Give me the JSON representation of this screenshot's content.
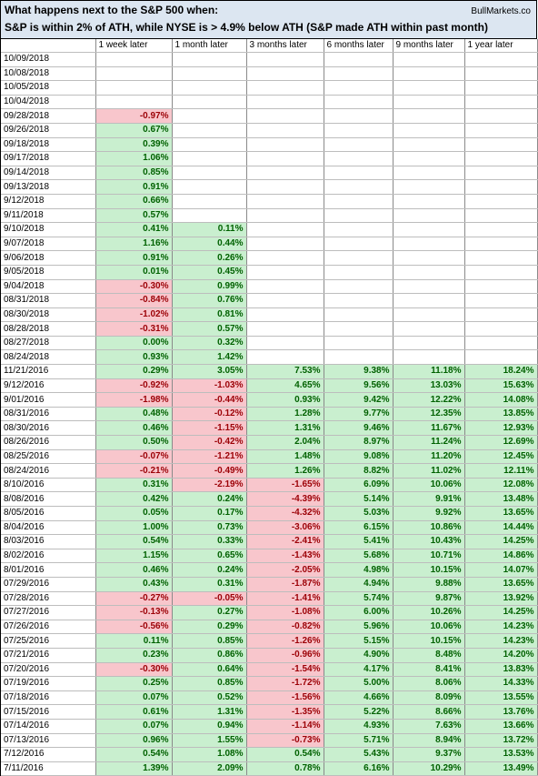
{
  "chart_data": {
    "type": "table",
    "title": "What happens next to the S&P 500 when:",
    "subtitle": "S&P is within 2% of ATH, while NYSE is > 4.9% below ATH (S&P made ATH within past month)",
    "source": "BullMarkets.co",
    "columns": [
      "",
      "1 week later",
      "1 month later",
      "3 months later",
      "6 months later",
      "9 months later",
      "1 year later"
    ],
    "rows": [
      [
        "10/09/2018",
        "",
        "",
        "",
        "",
        "",
        ""
      ],
      [
        "10/08/2018",
        "",
        "",
        "",
        "",
        "",
        ""
      ],
      [
        "10/05/2018",
        "",
        "",
        "",
        "",
        "",
        ""
      ],
      [
        "10/04/2018",
        "",
        "",
        "",
        "",
        "",
        ""
      ],
      [
        "09/28/2018",
        "-0.97%",
        "",
        "",
        "",
        "",
        ""
      ],
      [
        "09/26/2018",
        "0.67%",
        "",
        "",
        "",
        "",
        ""
      ],
      [
        "09/18/2018",
        "0.39%",
        "",
        "",
        "",
        "",
        ""
      ],
      [
        "09/17/2018",
        "1.06%",
        "",
        "",
        "",
        "",
        ""
      ],
      [
        "09/14/2018",
        "0.85%",
        "",
        "",
        "",
        "",
        ""
      ],
      [
        "09/13/2018",
        "0.91%",
        "",
        "",
        "",
        "",
        ""
      ],
      [
        "9/12/2018",
        "0.66%",
        "",
        "",
        "",
        "",
        ""
      ],
      [
        "9/11/2018",
        "0.57%",
        "",
        "",
        "",
        "",
        ""
      ],
      [
        "9/10/2018",
        "0.41%",
        "0.11%",
        "",
        "",
        "",
        ""
      ],
      [
        "9/07/2018",
        "1.16%",
        "0.44%",
        "",
        "",
        "",
        ""
      ],
      [
        "9/06/2018",
        "0.91%",
        "0.26%",
        "",
        "",
        "",
        ""
      ],
      [
        "9/05/2018",
        "0.01%",
        "0.45%",
        "",
        "",
        "",
        ""
      ],
      [
        "9/04/2018",
        "-0.30%",
        "0.99%",
        "",
        "",
        "",
        ""
      ],
      [
        "08/31/2018",
        "-0.84%",
        "0.76%",
        "",
        "",
        "",
        ""
      ],
      [
        "08/30/2018",
        "-1.02%",
        "0.81%",
        "",
        "",
        "",
        ""
      ],
      [
        "08/28/2018",
        "-0.31%",
        "0.57%",
        "",
        "",
        "",
        ""
      ],
      [
        "08/27/2018",
        "0.00%",
        "0.32%",
        "",
        "",
        "",
        ""
      ],
      [
        "08/24/2018",
        "0.93%",
        "1.42%",
        "",
        "",
        "",
        ""
      ],
      [
        "11/21/2016",
        "0.29%",
        "3.05%",
        "7.53%",
        "9.38%",
        "11.18%",
        "18.24%"
      ],
      [
        "9/12/2016",
        "-0.92%",
        "-1.03%",
        "4.65%",
        "9.56%",
        "13.03%",
        "15.63%"
      ],
      [
        "9/01/2016",
        "-1.98%",
        "-0.44%",
        "0.93%",
        "9.42%",
        "12.22%",
        "14.08%"
      ],
      [
        "08/31/2016",
        "0.48%",
        "-0.12%",
        "1.28%",
        "9.77%",
        "12.35%",
        "13.85%"
      ],
      [
        "08/30/2016",
        "0.46%",
        "-1.15%",
        "1.31%",
        "9.46%",
        "11.67%",
        "12.93%"
      ],
      [
        "08/26/2016",
        "0.50%",
        "-0.42%",
        "2.04%",
        "8.97%",
        "11.24%",
        "12.69%"
      ],
      [
        "08/25/2016",
        "-0.07%",
        "-1.21%",
        "1.48%",
        "9.08%",
        "11.20%",
        "12.45%"
      ],
      [
        "08/24/2016",
        "-0.21%",
        "-0.49%",
        "1.26%",
        "8.82%",
        "11.02%",
        "12.11%"
      ],
      [
        "8/10/2016",
        "0.31%",
        "-2.19%",
        "-1.65%",
        "6.09%",
        "10.06%",
        "12.08%"
      ],
      [
        "8/08/2016",
        "0.42%",
        "0.24%",
        "-4.39%",
        "5.14%",
        "9.91%",
        "13.48%"
      ],
      [
        "8/05/2016",
        "0.05%",
        "0.17%",
        "-4.32%",
        "5.03%",
        "9.92%",
        "13.65%"
      ],
      [
        "8/04/2016",
        "1.00%",
        "0.73%",
        "-3.06%",
        "6.15%",
        "10.86%",
        "14.44%"
      ],
      [
        "8/03/2016",
        "0.54%",
        "0.33%",
        "-2.41%",
        "5.41%",
        "10.43%",
        "14.25%"
      ],
      [
        "8/02/2016",
        "1.15%",
        "0.65%",
        "-1.43%",
        "5.68%",
        "10.71%",
        "14.86%"
      ],
      [
        "8/01/2016",
        "0.46%",
        "0.24%",
        "-2.05%",
        "4.98%",
        "10.15%",
        "14.07%"
      ],
      [
        "07/29/2016",
        "0.43%",
        "0.31%",
        "-1.87%",
        "4.94%",
        "9.88%",
        "13.65%"
      ],
      [
        "07/28/2016",
        "-0.27%",
        "-0.05%",
        "-1.41%",
        "5.74%",
        "9.87%",
        "13.92%"
      ],
      [
        "07/27/2016",
        "-0.13%",
        "0.27%",
        "-1.08%",
        "6.00%",
        "10.26%",
        "14.25%"
      ],
      [
        "07/26/2016",
        "-0.56%",
        "0.29%",
        "-0.82%",
        "5.96%",
        "10.06%",
        "14.23%"
      ],
      [
        "07/25/2016",
        "0.11%",
        "0.85%",
        "-1.26%",
        "5.15%",
        "10.15%",
        "14.23%"
      ],
      [
        "07/21/2016",
        "0.23%",
        "0.86%",
        "-0.96%",
        "4.90%",
        "8.48%",
        "14.20%"
      ],
      [
        "07/20/2016",
        "-0.30%",
        "0.64%",
        "-1.54%",
        "4.17%",
        "8.41%",
        "13.83%"
      ],
      [
        "07/19/2016",
        "0.25%",
        "0.85%",
        "-1.72%",
        "5.00%",
        "8.06%",
        "14.33%"
      ],
      [
        "07/18/2016",
        "0.07%",
        "0.52%",
        "-1.56%",
        "4.66%",
        "8.09%",
        "13.55%"
      ],
      [
        "07/15/2016",
        "0.61%",
        "1.31%",
        "-1.35%",
        "5.22%",
        "8.66%",
        "13.76%"
      ],
      [
        "07/14/2016",
        "0.07%",
        "0.94%",
        "-1.14%",
        "4.93%",
        "7.63%",
        "13.66%"
      ],
      [
        "07/13/2016",
        "0.96%",
        "1.55%",
        "-0.73%",
        "5.71%",
        "8.94%",
        "13.72%"
      ],
      [
        "7/12/2016",
        "0.54%",
        "1.08%",
        "0.54%",
        "5.43%",
        "9.37%",
        "13.53%"
      ],
      [
        "7/11/2016",
        "1.39%",
        "2.09%",
        "0.78%",
        "6.16%",
        "10.29%",
        "13.49%"
      ]
    ],
    "colors": {
      "positive_fill": "#c9efcf",
      "positive_text": "#006100",
      "negative_fill": "#f8c6cc",
      "negative_text": "#9c0006",
      "header_fill": "#dce6f1"
    }
  }
}
